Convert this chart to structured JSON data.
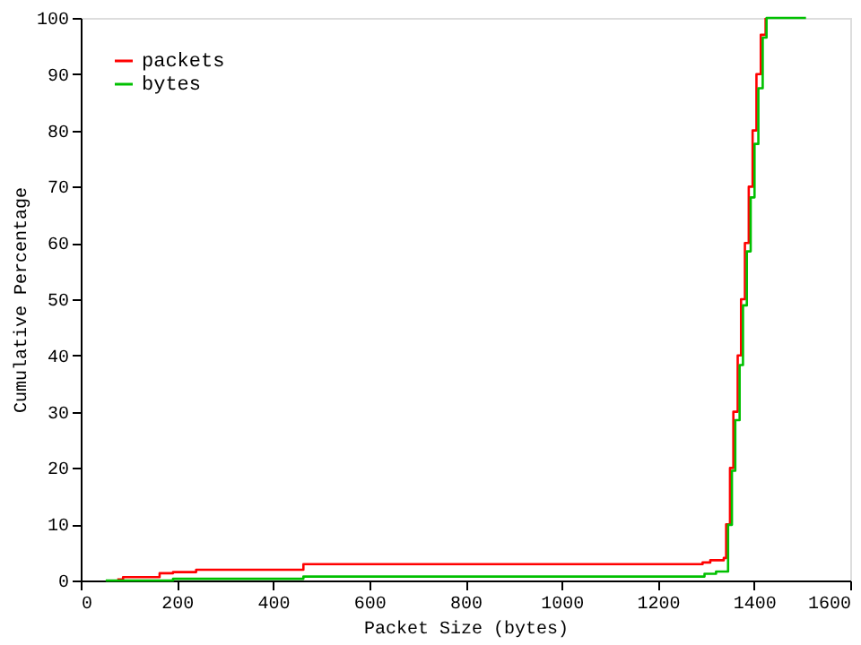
{
  "chart_data": {
    "type": "step",
    "xlabel": "Packet Size (bytes)",
    "ylabel": "Cumulative Percentage",
    "xlim": [
      0,
      1600
    ],
    "xticks": [
      0,
      200,
      400,
      600,
      800,
      1000,
      1200,
      1400,
      1600
    ],
    "ylim": [
      0,
      100
    ],
    "yticks": [
      0,
      10,
      20,
      30,
      40,
      50,
      60,
      70,
      80,
      90,
      100
    ],
    "grid": false,
    "legend": "top left",
    "line_style": "solid",
    "marker": "none",
    "series": [
      {
        "name": "packets",
        "color": "#ff0000",
        "x": [
          76,
          88,
          164,
          192,
          240,
          463,
          1293,
          1309,
          1337,
          1342,
          1350,
          1357,
          1366,
          1373,
          1381,
          1389,
          1397,
          1405,
          1414,
          1424
        ],
        "values": [
          0.2,
          0.6,
          1.3,
          1.5,
          1.9,
          2.9,
          3.2,
          3.6,
          4.0,
          10,
          20,
          30,
          40,
          50,
          60,
          70,
          80,
          90,
          97,
          100
        ]
      },
      {
        "name": "bytes",
        "color": "#00c000",
        "x": [
          52,
          192,
          463,
          1297,
          1321,
          1346,
          1354,
          1361,
          1370,
          1377,
          1385,
          1393,
          1401,
          1409,
          1418,
          1426,
          1508
        ],
        "values": [
          0,
          0.3,
          0.7,
          1.2,
          1.6,
          9.9,
          19.5,
          28.5,
          38.3,
          48.9,
          58.5,
          68.1,
          77.6,
          87.5,
          96.5,
          100,
          100
        ]
      }
    ]
  }
}
